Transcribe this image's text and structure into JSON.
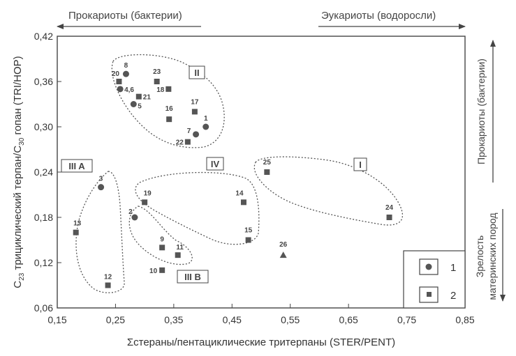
{
  "chart_data": {
    "type": "scatter",
    "xlabel": "Σстераны/пентациклические тритерпаны (STER/PENT)",
    "ylabel_parts": [
      "C",
      "23",
      " трициклический терпан/C",
      "30",
      " гопан (TRI/HOP)"
    ],
    "xlim": [
      0.15,
      0.85
    ],
    "ylim": [
      0.06,
      0.42
    ],
    "xticks": [
      "0,15",
      "0,25",
      "0,35",
      "0,45",
      "0,55",
      "0,65",
      "0,75",
      "0,85"
    ],
    "yticks": [
      "0,06",
      "0,12",
      "0,18",
      "0,24",
      "0,30",
      "0,36",
      "0,42"
    ],
    "grid": false,
    "top_left_note": "Прокариоты (бактерии)",
    "top_right_note": "Эукариоты (водоросли)",
    "right_upper_note": "Прокариоты (бактерии)",
    "right_lower_note": [
      "Зрелость",
      "материнских пород"
    ],
    "legend": {
      "position": "bottom-right",
      "items": [
        {
          "label": "1",
          "marker": "circle"
        },
        {
          "label": "2",
          "marker": "square"
        }
      ]
    },
    "points": [
      {
        "label": "1",
        "x": 0.405,
        "y": 0.3,
        "marker": "circle"
      },
      {
        "label": "2",
        "x": 0.283,
        "y": 0.18,
        "marker": "circle"
      },
      {
        "label": "3",
        "x": 0.225,
        "y": 0.22,
        "marker": "circle"
      },
      {
        "label": "4,6",
        "x": 0.258,
        "y": 0.35,
        "marker": "circle"
      },
      {
        "label": "5",
        "x": 0.281,
        "y": 0.33,
        "marker": "circle"
      },
      {
        "label": "7",
        "x": 0.388,
        "y": 0.29,
        "marker": "circle"
      },
      {
        "label": "8",
        "x": 0.268,
        "y": 0.37,
        "marker": "circle"
      },
      {
        "label": "9",
        "x": 0.33,
        "y": 0.14,
        "marker": "square"
      },
      {
        "label": "10",
        "x": 0.33,
        "y": 0.11,
        "marker": "square"
      },
      {
        "label": "11",
        "x": 0.357,
        "y": 0.13,
        "marker": "square"
      },
      {
        "label": "12",
        "x": 0.237,
        "y": 0.09,
        "marker": "square"
      },
      {
        "label": "13",
        "x": 0.182,
        "y": 0.16,
        "marker": "square"
      },
      {
        "label": "14",
        "x": 0.47,
        "y": 0.2,
        "marker": "square"
      },
      {
        "label": "15",
        "x": 0.478,
        "y": 0.15,
        "marker": "square"
      },
      {
        "label": "16",
        "x": 0.342,
        "y": 0.31,
        "marker": "square"
      },
      {
        "label": "17",
        "x": 0.386,
        "y": 0.32,
        "marker": "square"
      },
      {
        "label": "18",
        "x": 0.341,
        "y": 0.35,
        "marker": "square"
      },
      {
        "label": "19",
        "x": 0.3,
        "y": 0.2,
        "marker": "square"
      },
      {
        "label": "20",
        "x": 0.256,
        "y": 0.36,
        "marker": "square"
      },
      {
        "label": "21",
        "x": 0.29,
        "y": 0.34,
        "marker": "square"
      },
      {
        "label": "22",
        "x": 0.374,
        "y": 0.28,
        "marker": "square"
      },
      {
        "label": "23",
        "x": 0.321,
        "y": 0.36,
        "marker": "square"
      },
      {
        "label": "24",
        "x": 0.72,
        "y": 0.18,
        "marker": "square"
      },
      {
        "label": "25",
        "x": 0.51,
        "y": 0.24,
        "marker": "square"
      },
      {
        "label": "26",
        "x": 0.538,
        "y": 0.13,
        "marker": "triangle"
      }
    ],
    "groups": [
      {
        "label": "I"
      },
      {
        "label": "II"
      },
      {
        "label": "III A"
      },
      {
        "label": "III B"
      },
      {
        "label": "IV"
      }
    ]
  }
}
